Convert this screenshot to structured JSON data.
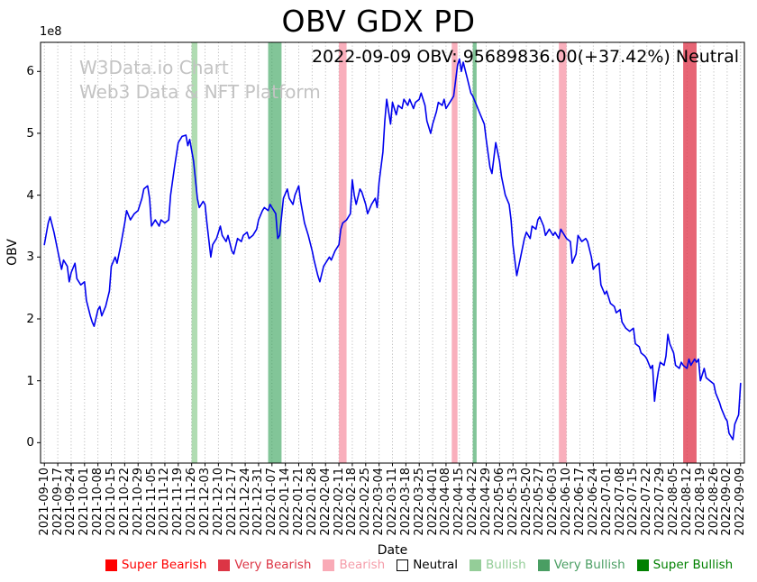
{
  "title": "OBV GDX PD",
  "annotation": "2022-09-09 OBV: 95689836.00(+37.42%) Neutral",
  "watermark": {
    "line1": "W3Data.io Chart",
    "line2": "Web3 Data & NFT Platform"
  },
  "chart_data": {
    "type": "line",
    "title": "OBV GDX PD",
    "xlabel": "Date",
    "ylabel": "OBV",
    "y_offset_label": "1e8",
    "y_unit_multiplier": 100000000,
    "ylim": [
      -0.33,
      6.47
    ],
    "xlim_days": [
      -2,
      366
    ],
    "y_ticks": [
      0,
      1,
      2,
      3,
      4,
      5,
      6
    ],
    "x_tick_interval_days": 7,
    "x_tick_labels": [
      "2021-09-10",
      "2021-09-17",
      "2021-09-24",
      "2021-10-01",
      "2021-10-08",
      "2021-10-15",
      "2021-10-22",
      "2021-10-29",
      "2021-11-05",
      "2021-11-12",
      "2021-11-19",
      "2021-11-26",
      "2021-12-03",
      "2021-12-10",
      "2021-12-17",
      "2021-12-24",
      "2021-12-31",
      "2022-01-07",
      "2022-01-14",
      "2022-01-21",
      "2022-01-28",
      "2022-02-04",
      "2022-02-11",
      "2022-02-18",
      "2022-02-25",
      "2022-03-04",
      "2022-03-11",
      "2022-03-18",
      "2022-03-25",
      "2022-04-01",
      "2022-04-08",
      "2022-04-15",
      "2022-04-22",
      "2022-04-29",
      "2022-05-06",
      "2022-05-13",
      "2022-05-20",
      "2022-05-27",
      "2022-06-03",
      "2022-06-10",
      "2022-06-17",
      "2022-06-24",
      "2022-07-01",
      "2022-07-08",
      "2022-07-15",
      "2022-07-22",
      "2022-07-29",
      "2022-08-05",
      "2022-08-12",
      "2022-08-19",
      "2022-08-26",
      "2022-09-02",
      "2022-09-09"
    ],
    "grid_color": "#999999",
    "series": [
      {
        "name": "OBV",
        "color": "#0000ee",
        "points_format": "[day_offset_from_2021-09-10, value_in_1e8_units]",
        "points": [
          [
            0,
            3.2
          ],
          [
            2,
            3.55
          ],
          [
            3,
            3.65
          ],
          [
            5,
            3.4
          ],
          [
            7,
            3.1
          ],
          [
            9,
            2.8
          ],
          [
            10,
            2.95
          ],
          [
            12,
            2.85
          ],
          [
            13,
            2.6
          ],
          [
            14,
            2.75
          ],
          [
            16,
            2.9
          ],
          [
            17,
            2.65
          ],
          [
            19,
            2.55
          ],
          [
            21,
            2.6
          ],
          [
            22,
            2.3
          ],
          [
            24,
            2.05
          ],
          [
            25,
            1.95
          ],
          [
            26,
            1.88
          ],
          [
            28,
            2.15
          ],
          [
            29,
            2.2
          ],
          [
            30,
            2.05
          ],
          [
            32,
            2.2
          ],
          [
            34,
            2.45
          ],
          [
            35,
            2.85
          ],
          [
            37,
            3.0
          ],
          [
            38,
            2.9
          ],
          [
            40,
            3.2
          ],
          [
            42,
            3.55
          ],
          [
            43,
            3.75
          ],
          [
            45,
            3.6
          ],
          [
            47,
            3.7
          ],
          [
            49,
            3.75
          ],
          [
            51,
            3.95
          ],
          [
            52,
            4.1
          ],
          [
            54,
            4.15
          ],
          [
            55,
            3.95
          ],
          [
            56,
            3.5
          ],
          [
            58,
            3.6
          ],
          [
            60,
            3.5
          ],
          [
            61,
            3.6
          ],
          [
            63,
            3.55
          ],
          [
            65,
            3.6
          ],
          [
            66,
            4.0
          ],
          [
            68,
            4.45
          ],
          [
            70,
            4.85
          ],
          [
            72,
            4.95
          ],
          [
            74,
            4.97
          ],
          [
            75,
            4.8
          ],
          [
            76,
            4.9
          ],
          [
            78,
            4.55
          ],
          [
            80,
            3.95
          ],
          [
            81,
            3.8
          ],
          [
            83,
            3.9
          ],
          [
            84,
            3.85
          ],
          [
            85,
            3.55
          ],
          [
            87,
            3.0
          ],
          [
            88,
            3.2
          ],
          [
            90,
            3.3
          ],
          [
            92,
            3.5
          ],
          [
            93,
            3.35
          ],
          [
            95,
            3.25
          ],
          [
            96,
            3.35
          ],
          [
            98,
            3.1
          ],
          [
            99,
            3.05
          ],
          [
            101,
            3.3
          ],
          [
            103,
            3.25
          ],
          [
            104,
            3.35
          ],
          [
            106,
            3.4
          ],
          [
            107,
            3.3
          ],
          [
            109,
            3.35
          ],
          [
            111,
            3.45
          ],
          [
            112,
            3.6
          ],
          [
            114,
            3.75
          ],
          [
            115,
            3.8
          ],
          [
            117,
            3.75
          ],
          [
            118,
            3.85
          ],
          [
            119,
            3.8
          ],
          [
            121,
            3.7
          ],
          [
            122,
            3.3
          ],
          [
            123,
            3.35
          ],
          [
            125,
            3.95
          ],
          [
            127,
            4.1
          ],
          [
            128,
            3.95
          ],
          [
            130,
            3.85
          ],
          [
            131,
            4.0
          ],
          [
            133,
            4.15
          ],
          [
            134,
            3.9
          ],
          [
            136,
            3.55
          ],
          [
            138,
            3.35
          ],
          [
            140,
            3.1
          ],
          [
            141,
            2.95
          ],
          [
            143,
            2.7
          ],
          [
            144,
            2.6
          ],
          [
            146,
            2.85
          ],
          [
            147,
            2.9
          ],
          [
            149,
            3.0
          ],
          [
            150,
            2.95
          ],
          [
            152,
            3.1
          ],
          [
            154,
            3.2
          ],
          [
            155,
            3.45
          ],
          [
            156,
            3.55
          ],
          [
            158,
            3.6
          ],
          [
            160,
            3.7
          ],
          [
            161,
            4.25
          ],
          [
            162,
            4.0
          ],
          [
            163,
            3.85
          ],
          [
            165,
            4.1
          ],
          [
            166,
            4.05
          ],
          [
            168,
            3.85
          ],
          [
            169,
            3.7
          ],
          [
            171,
            3.85
          ],
          [
            173,
            3.95
          ],
          [
            174,
            3.8
          ],
          [
            175,
            4.2
          ],
          [
            177,
            4.7
          ],
          [
            178,
            5.2
          ],
          [
            179,
            5.55
          ],
          [
            181,
            5.15
          ],
          [
            182,
            5.5
          ],
          [
            184,
            5.3
          ],
          [
            185,
            5.45
          ],
          [
            187,
            5.4
          ],
          [
            188,
            5.55
          ],
          [
            190,
            5.45
          ],
          [
            191,
            5.55
          ],
          [
            193,
            5.4
          ],
          [
            194,
            5.5
          ],
          [
            196,
            5.55
          ],
          [
            197,
            5.65
          ],
          [
            199,
            5.45
          ],
          [
            200,
            5.2
          ],
          [
            202,
            5.0
          ],
          [
            203,
            5.15
          ],
          [
            205,
            5.35
          ],
          [
            206,
            5.5
          ],
          [
            208,
            5.45
          ],
          [
            209,
            5.55
          ],
          [
            210,
            5.4
          ],
          [
            212,
            5.5
          ],
          [
            214,
            5.6
          ],
          [
            216,
            6.1
          ],
          [
            217,
            6.2
          ],
          [
            218,
            6.0
          ],
          [
            219,
            6.15
          ],
          [
            221,
            5.9
          ],
          [
            223,
            5.65
          ],
          [
            224,
            5.6
          ],
          [
            226,
            5.45
          ],
          [
            228,
            5.3
          ],
          [
            230,
            5.15
          ],
          [
            231,
            4.9
          ],
          [
            233,
            4.45
          ],
          [
            234,
            4.35
          ],
          [
            236,
            4.85
          ],
          [
            238,
            4.55
          ],
          [
            239,
            4.3
          ],
          [
            241,
            4.0
          ],
          [
            243,
            3.85
          ],
          [
            244,
            3.6
          ],
          [
            245,
            3.2
          ],
          [
            247,
            2.7
          ],
          [
            249,
            3.0
          ],
          [
            251,
            3.3
          ],
          [
            252,
            3.4
          ],
          [
            254,
            3.3
          ],
          [
            255,
            3.5
          ],
          [
            257,
            3.45
          ],
          [
            258,
            3.6
          ],
          [
            259,
            3.65
          ],
          [
            261,
            3.5
          ],
          [
            262,
            3.35
          ],
          [
            264,
            3.45
          ],
          [
            266,
            3.35
          ],
          [
            267,
            3.4
          ],
          [
            269,
            3.3
          ],
          [
            270,
            3.45
          ],
          [
            272,
            3.35
          ],
          [
            273,
            3.3
          ],
          [
            275,
            3.25
          ],
          [
            276,
            2.9
          ],
          [
            278,
            3.05
          ],
          [
            279,
            3.35
          ],
          [
            281,
            3.25
          ],
          [
            283,
            3.3
          ],
          [
            284,
            3.25
          ],
          [
            286,
            3.0
          ],
          [
            287,
            2.8
          ],
          [
            288,
            2.85
          ],
          [
            290,
            2.9
          ],
          [
            291,
            2.55
          ],
          [
            293,
            2.4
          ],
          [
            294,
            2.45
          ],
          [
            296,
            2.25
          ],
          [
            298,
            2.2
          ],
          [
            299,
            2.1
          ],
          [
            301,
            2.15
          ],
          [
            302,
            1.95
          ],
          [
            304,
            1.85
          ],
          [
            306,
            1.8
          ],
          [
            308,
            1.85
          ],
          [
            309,
            1.6
          ],
          [
            311,
            1.55
          ],
          [
            312,
            1.45
          ],
          [
            314,
            1.4
          ],
          [
            315,
            1.35
          ],
          [
            317,
            1.2
          ],
          [
            318,
            1.25
          ],
          [
            319,
            0.67
          ],
          [
            320,
            0.95
          ],
          [
            321,
            1.15
          ],
          [
            322,
            1.3
          ],
          [
            324,
            1.25
          ],
          [
            325,
            1.4
          ],
          [
            326,
            1.75
          ],
          [
            327,
            1.6
          ],
          [
            329,
            1.45
          ],
          [
            330,
            1.25
          ],
          [
            332,
            1.2
          ],
          [
            333,
            1.3
          ],
          [
            334,
            1.25
          ],
          [
            336,
            1.2
          ],
          [
            337,
            1.35
          ],
          [
            338,
            1.25
          ],
          [
            340,
            1.35
          ],
          [
            341,
            1.3
          ],
          [
            342,
            1.35
          ],
          [
            343,
            1.0
          ],
          [
            345,
            1.2
          ],
          [
            346,
            1.05
          ],
          [
            348,
            1.0
          ],
          [
            350,
            0.95
          ],
          [
            351,
            0.8
          ],
          [
            353,
            0.65
          ],
          [
            354,
            0.55
          ],
          [
            356,
            0.4
          ],
          [
            357,
            0.35
          ],
          [
            358,
            0.15
          ],
          [
            360,
            0.05
          ],
          [
            361,
            0.3
          ],
          [
            363,
            0.45
          ],
          [
            364,
            0.957
          ]
        ]
      }
    ],
    "bands": [
      {
        "level": "Bullish",
        "start": "2021-11-26",
        "end": "2021-11-29",
        "start_day": 77,
        "end_day": 80,
        "color": "#6fbf73",
        "opacity": 0.55
      },
      {
        "level": "Very Bullish",
        "start": "2022-01-05",
        "end": "2022-01-12",
        "start_day": 117,
        "end_day": 124,
        "color": "#2f9e53",
        "opacity": 0.6
      },
      {
        "level": "Bearish",
        "start": "2022-02-11",
        "end": "2022-02-15",
        "start_day": 154,
        "end_day": 158,
        "color": "#f78da0",
        "opacity": 0.7
      },
      {
        "level": "Bearish",
        "start": "2022-04-11",
        "end": "2022-04-14",
        "start_day": 213,
        "end_day": 216,
        "color": "#f78da0",
        "opacity": 0.7
      },
      {
        "level": "Very Bullish",
        "start": "2022-04-22",
        "end": "2022-04-24",
        "start_day": 224,
        "end_day": 226,
        "color": "#2f9e53",
        "opacity": 0.6
      },
      {
        "level": "Bearish",
        "start": "2022-06-06",
        "end": "2022-06-10",
        "start_day": 269,
        "end_day": 273,
        "color": "#f78da0",
        "opacity": 0.7
      },
      {
        "level": "Very Bearish",
        "start": "2022-08-10",
        "end": "2022-08-17",
        "start_day": 334,
        "end_day": 341,
        "color": "#e03a4e",
        "opacity": 0.78
      }
    ],
    "legend": [
      {
        "label": "Super Bearish",
        "color": "#fe0000",
        "text_color": "#fe0000"
      },
      {
        "label": "Very Bearish",
        "color": "#dc3545",
        "text_color": "#dc3545"
      },
      {
        "label": "Bearish",
        "color": "#f9aab6",
        "text_color": "#f59ca9"
      },
      {
        "label": "Neutral",
        "color": "#ffffff",
        "text_color": "#000000",
        "edge": "#000000"
      },
      {
        "label": "Bullish",
        "color": "#94cd98",
        "text_color": "#94cd98"
      },
      {
        "label": "Very Bullish",
        "color": "#4a9e63",
        "text_color": "#4a9e63"
      },
      {
        "label": "Super Bullish",
        "color": "#008000",
        "text_color": "#008000"
      }
    ],
    "legend_position": "bottom-center",
    "grid": "vertical-dotted"
  }
}
